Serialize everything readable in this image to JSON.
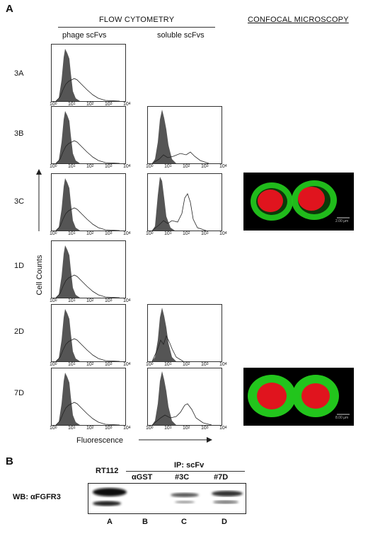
{
  "figure": {
    "panel_a": "A",
    "panel_b": "B"
  },
  "headers": {
    "flow": "FLOW CYTOMETRY",
    "confocal": "CONFOCAL MICROSCOPY",
    "phage": "phage scFvs",
    "soluble": "soluble scFvs"
  },
  "axes": {
    "ylabel": "Cell Counts",
    "xlabel": "Fluorescence",
    "ticks": [
      "10",
      "10",
      "10",
      "10",
      "10"
    ],
    "exps": [
      "0",
      "1",
      "2",
      "3",
      "4"
    ]
  },
  "rows": [
    {
      "label": "3A",
      "soluble": false,
      "confocal": false
    },
    {
      "label": "3B",
      "soluble": true,
      "confocal": false
    },
    {
      "label": "3C",
      "soluble": true,
      "confocal": true
    },
    {
      "label": "1D",
      "soluble": false,
      "confocal": false
    },
    {
      "label": "2D",
      "soluble": true,
      "confocal": true
    },
    {
      "label": "7D",
      "soluble": true,
      "confocal": true
    }
  ],
  "confocal_scale": [
    "2.00 µm",
    "8.00 µm"
  ],
  "blot": {
    "wb_label": "WB: αFGFR3",
    "rt112": "RT112",
    "ip_label": "IP: scFv",
    "lanes_top": [
      "αGST",
      "#3C",
      "#7D"
    ],
    "lanes_bottom": [
      "A",
      "B",
      "C",
      "D"
    ]
  },
  "colors": {
    "filled": "#555555",
    "nucleus": "#e0141e",
    "membrane": "#22c51c"
  }
}
